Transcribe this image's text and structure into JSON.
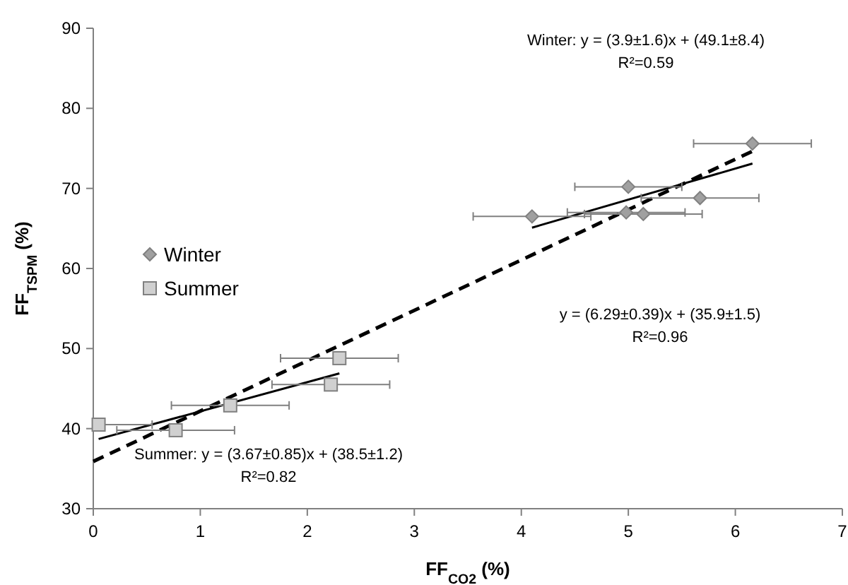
{
  "chart_data": {
    "type": "scatter",
    "xlabel": "FF$_{CO2}$ (%)",
    "ylabel": "FF$_{TSPM}$ (%)",
    "xlim": [
      0,
      7
    ],
    "ylim": [
      30,
      90
    ],
    "xticks": [
      0,
      1,
      2,
      3,
      4,
      5,
      6,
      7
    ],
    "yticks": [
      30,
      40,
      50,
      60,
      70,
      80,
      90
    ],
    "grid": false,
    "legend": "left",
    "series": [
      {
        "name": "Winter",
        "marker": "diamond",
        "color": "#a0a0a0",
        "x": [
          4.1,
          5.0,
          4.98,
          5.14,
          5.67,
          6.16
        ],
        "values": [
          66.5,
          70.2,
          67.0,
          66.8,
          68.8,
          75.6
        ],
        "xerrors": [
          0.55,
          0.5,
          0.55,
          0.55,
          0.55,
          0.55
        ]
      },
      {
        "name": "Summer",
        "marker": "square",
        "color": "#d0d0d0",
        "x": [
          0.05,
          0.77,
          1.28,
          2.22,
          2.3
        ],
        "values": [
          40.5,
          39.8,
          42.9,
          45.5,
          48.8
        ],
        "xerrors": [
          [
            0,
            0.55
          ],
          0.55,
          0.55,
          0.55,
          0.55
        ]
      },
      {
        "type": "line",
        "color": "#000000",
        "line_style": "solid",
        "x": [
          4.1,
          6.16
        ],
        "values": [
          65.1,
          73.1
        ]
      },
      {
        "type": "line",
        "color": "#000000",
        "line_style": "solid",
        "x": [
          0.05,
          2.3
        ],
        "values": [
          38.7,
          46.9
        ]
      },
      {
        "type": "line",
        "color": "#000000",
        "line_style": "dashed",
        "x": [
          0,
          6.2
        ],
        "values": [
          35.9,
          74.9
        ]
      }
    ],
    "annotations": [
      "Winter: y = (3.9±1.6)x + (49.1±8.4)",
      "R²=0.59",
      "y = (6.29±0.39)x + (35.9±1.5)",
      "R²=0.96",
      "Summer: y = (3.67±0.85)x + (38.5±1.2)",
      "R²=0.82"
    ]
  }
}
